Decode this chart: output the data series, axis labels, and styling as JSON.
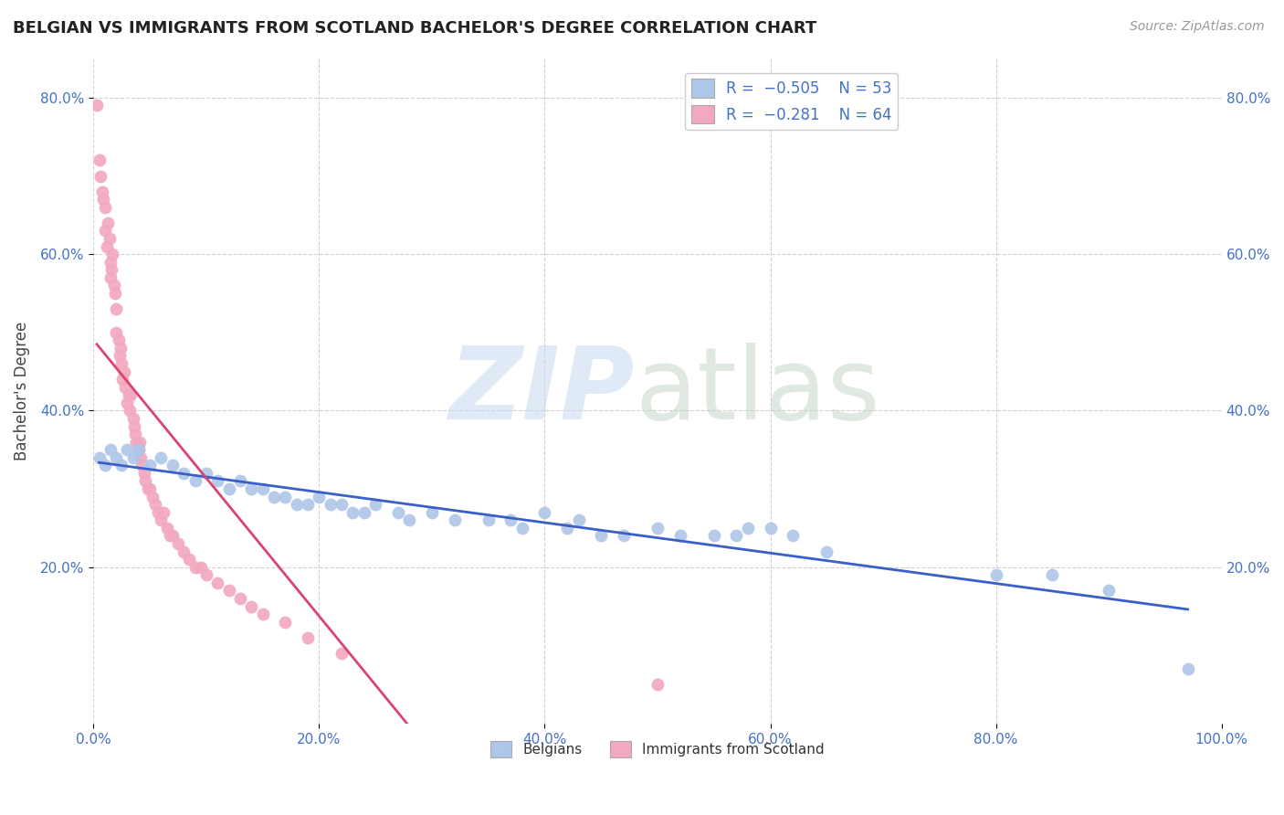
{
  "title": "BELGIAN VS IMMIGRANTS FROM SCOTLAND BACHELOR'S DEGREE CORRELATION CHART",
  "source": "Source: ZipAtlas.com",
  "ylabel": "Bachelor's Degree",
  "blue_color": "#aec6e8",
  "pink_color": "#f2a8be",
  "blue_line_color": "#3a5fc8",
  "pink_line_color": "#d94470",
  "belgians_R": -0.505,
  "belgians_N": 53,
  "scotland_R": -0.281,
  "scotland_N": 64,
  "xlim": [
    0.0,
    1.0
  ],
  "ylim": [
    0.0,
    0.85
  ],
  "xticks": [
    0.0,
    0.2,
    0.4,
    0.6,
    0.8,
    1.0
  ],
  "yticks": [
    0.2,
    0.4,
    0.6,
    0.8
  ],
  "xticklabels": [
    "0.0%",
    "20.0%",
    "40.0%",
    "60.0%",
    "80.0%",
    "100.0%"
  ],
  "yticklabels": [
    "20.0%",
    "40.0%",
    "60.0%",
    "80.0%"
  ],
  "belgians_x": [
    0.005,
    0.01,
    0.015,
    0.02,
    0.025,
    0.03,
    0.035,
    0.04,
    0.05,
    0.06,
    0.07,
    0.08,
    0.09,
    0.1,
    0.11,
    0.12,
    0.13,
    0.14,
    0.15,
    0.16,
    0.17,
    0.18,
    0.19,
    0.2,
    0.21,
    0.22,
    0.23,
    0.24,
    0.25,
    0.27,
    0.28,
    0.3,
    0.32,
    0.35,
    0.37,
    0.38,
    0.4,
    0.42,
    0.43,
    0.45,
    0.47,
    0.5,
    0.52,
    0.55,
    0.57,
    0.58,
    0.6,
    0.62,
    0.65,
    0.8,
    0.85,
    0.9,
    0.97
  ],
  "belgians_y": [
    0.34,
    0.33,
    0.35,
    0.34,
    0.33,
    0.35,
    0.34,
    0.35,
    0.33,
    0.34,
    0.33,
    0.32,
    0.31,
    0.32,
    0.31,
    0.3,
    0.31,
    0.3,
    0.3,
    0.29,
    0.29,
    0.28,
    0.28,
    0.29,
    0.28,
    0.28,
    0.27,
    0.27,
    0.28,
    0.27,
    0.26,
    0.27,
    0.26,
    0.26,
    0.26,
    0.25,
    0.27,
    0.25,
    0.26,
    0.24,
    0.24,
    0.25,
    0.24,
    0.24,
    0.24,
    0.25,
    0.25,
    0.24,
    0.22,
    0.19,
    0.19,
    0.17,
    0.07
  ],
  "scotland_x": [
    0.003,
    0.005,
    0.006,
    0.008,
    0.009,
    0.01,
    0.01,
    0.012,
    0.013,
    0.014,
    0.015,
    0.015,
    0.016,
    0.017,
    0.018,
    0.019,
    0.02,
    0.02,
    0.022,
    0.023,
    0.024,
    0.025,
    0.026,
    0.027,
    0.028,
    0.03,
    0.031,
    0.032,
    0.033,
    0.035,
    0.036,
    0.037,
    0.038,
    0.04,
    0.041,
    0.042,
    0.043,
    0.045,
    0.046,
    0.048,
    0.05,
    0.052,
    0.055,
    0.057,
    0.06,
    0.062,
    0.065,
    0.068,
    0.07,
    0.075,
    0.08,
    0.085,
    0.09,
    0.095,
    0.1,
    0.11,
    0.12,
    0.13,
    0.14,
    0.15,
    0.17,
    0.19,
    0.22,
    0.5
  ],
  "scotland_y": [
    0.79,
    0.72,
    0.7,
    0.68,
    0.67,
    0.63,
    0.66,
    0.61,
    0.64,
    0.62,
    0.59,
    0.57,
    0.58,
    0.6,
    0.56,
    0.55,
    0.5,
    0.53,
    0.49,
    0.47,
    0.48,
    0.46,
    0.44,
    0.45,
    0.43,
    0.41,
    0.42,
    0.4,
    0.42,
    0.39,
    0.38,
    0.37,
    0.36,
    0.35,
    0.36,
    0.34,
    0.33,
    0.32,
    0.31,
    0.3,
    0.3,
    0.29,
    0.28,
    0.27,
    0.26,
    0.27,
    0.25,
    0.24,
    0.24,
    0.23,
    0.22,
    0.21,
    0.2,
    0.2,
    0.19,
    0.18,
    0.17,
    0.16,
    0.15,
    0.14,
    0.13,
    0.11,
    0.09,
    0.05
  ]
}
